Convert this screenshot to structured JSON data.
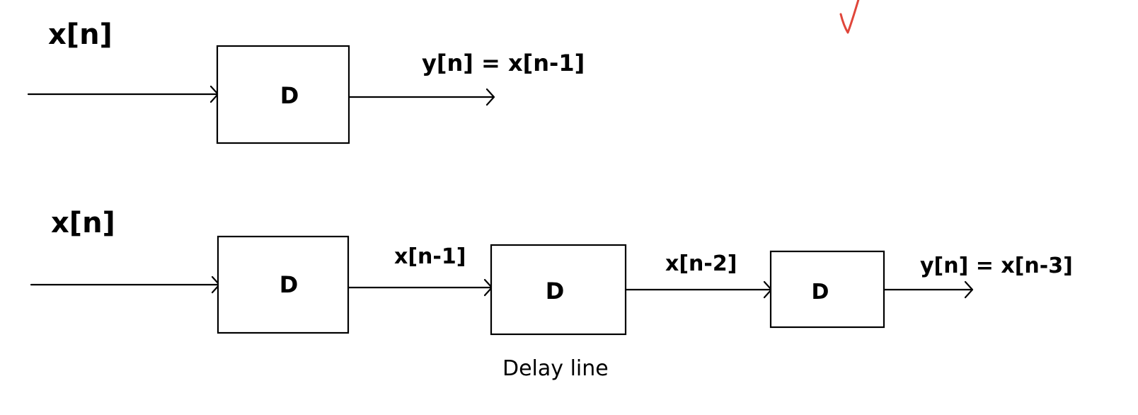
{
  "diagram_1": {
    "input_label": "x[n]",
    "block_label": "D",
    "output_label": "y[n] = x[n-1]"
  },
  "diagram_2": {
    "input_label": "x[n]",
    "blocks": [
      {
        "label": "D"
      },
      {
        "label": "D"
      },
      {
        "label": "D"
      }
    ],
    "intermediate_labels": [
      "x[n-1]",
      "x[n-2]"
    ],
    "output_label": "y[n] = x[n-3]",
    "caption": "Delay line"
  },
  "annotation": {
    "mark": "checkmark-icon",
    "color": "#e0463a"
  }
}
